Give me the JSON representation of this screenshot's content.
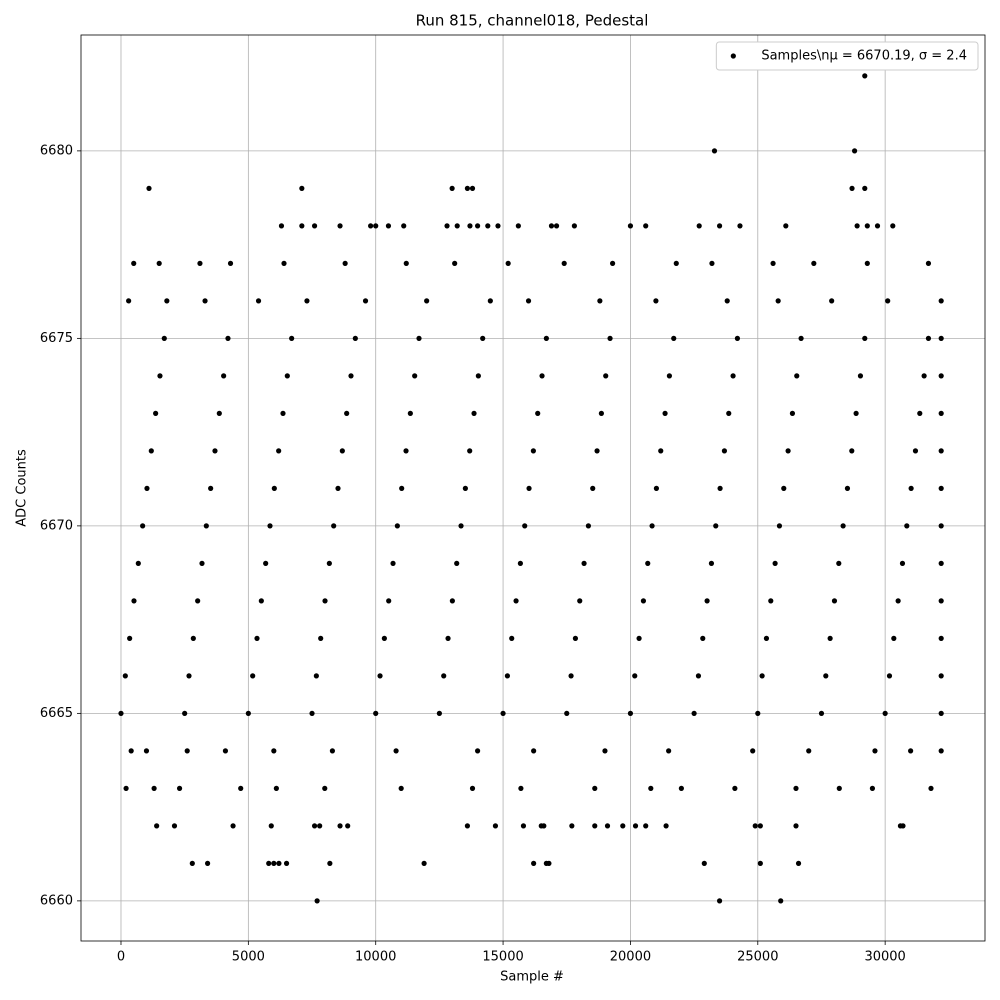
{
  "chart_data": {
    "type": "scatter",
    "title": "Run 815, channel018, Pedestal",
    "xlabel": "Sample #",
    "ylabel": "ADC Counts",
    "xlim": [
      -1570,
      33920
    ],
    "ylim": [
      6658.93,
      6683.09
    ],
    "xticks": [
      0,
      5000,
      10000,
      15000,
      20000,
      25000,
      30000
    ],
    "yticks": [
      6660,
      6665,
      6670,
      6675,
      6680
    ],
    "grid": true,
    "legend": "upper right",
    "x": [
      0,
      2500,
      5000,
      7500,
      10000,
      12500,
      15000,
      17500,
      20000,
      22500,
      25000,
      27500,
      30000,
      32200,
      170,
      2670,
      5170,
      7670,
      10170,
      12670,
      15170,
      17670,
      20170,
      22670,
      25170,
      27670,
      30170,
      32200,
      340,
      2840,
      5340,
      7840,
      10340,
      12840,
      15340,
      17840,
      20340,
      22840,
      25340,
      27840,
      30340,
      32200,
      510,
      3010,
      5510,
      8010,
      10510,
      13010,
      15510,
      18010,
      20510,
      23010,
      25510,
      28010,
      30510,
      32200,
      680,
      3180,
      5680,
      8180,
      10680,
      13180,
      15680,
      18180,
      20680,
      23180,
      25680,
      28180,
      30680,
      32200,
      850,
      3350,
      5850,
      8350,
      10850,
      13350,
      15850,
      18350,
      20850,
      23350,
      25850,
      28350,
      30850,
      32200,
      1020,
      3520,
      6020,
      8520,
      11020,
      13520,
      16020,
      18520,
      21020,
      23520,
      26020,
      28520,
      31020,
      32200,
      1190,
      3690,
      6190,
      8690,
      11190,
      13690,
      16190,
      18690,
      21190,
      23690,
      26190,
      28690,
      31190,
      32200,
      1360,
      3860,
      6360,
      8860,
      11360,
      13860,
      16360,
      18860,
      21360,
      23860,
      26360,
      28860,
      31360,
      32200,
      1530,
      4030,
      6530,
      9030,
      11530,
      14030,
      16530,
      19030,
      21530,
      24030,
      26530,
      29030,
      31530,
      32200,
      1700,
      4200,
      6700,
      9200,
      11700,
      14200,
      16700,
      19200,
      21700,
      24200,
      26700,
      29200,
      31700,
      32200,
      400,
      1000,
      2600,
      4100,
      6000,
      8300,
      10800,
      14000,
      16200,
      19000,
      21500,
      24800,
      27000,
      29600,
      31000,
      32200,
      200,
      1300,
      2300,
      4700,
      6100,
      8000,
      11000,
      13800,
      15700,
      18600,
      20800,
      22000,
      24100,
      26500,
      28200,
      29500,
      31800,
      300,
      1800,
      3300,
      5400,
      7300,
      9600,
      12000,
      14500,
      16000,
      18800,
      21000,
      23800,
      25800,
      27900,
      30100,
      32200,
      500,
      1500,
      3100,
      4300,
      6400,
      8800,
      11200,
      13100,
      15200,
      17400,
      19300,
      21800,
      23200,
      25600,
      27200,
      29300,
      31700,
      7700,
      23500,
      25900,
      2800,
      3400,
      5800,
      6000,
      6200,
      6500,
      8200,
      11900,
      16200,
      16700,
      16800,
      22900,
      25100,
      26600,
      1400,
      2100,
      4400,
      5900,
      7600,
      7800,
      8600,
      8900,
      13600,
      14700,
      15800,
      16500,
      16600,
      17700,
      18600,
      19100,
      19700,
      20200,
      20600,
      21400,
      24900,
      25100,
      26500,
      30600,
      30700,
      6300,
      7100,
      7600,
      8600,
      9800,
      10000,
      10500,
      11100,
      12800,
      13200,
      13700,
      14000,
      14400,
      14800,
      15600,
      16900,
      17100,
      17800,
      20000,
      20600,
      22700,
      23500,
      24300,
      26100,
      28900,
      29300,
      29700,
      30300,
      1100,
      7100,
      13000,
      13600,
      13800,
      28700,
      29200,
      23300,
      28800,
      29200
    ],
    "series": [
      {
        "name": "Samples\\nμ = 6670.19, σ = 2.4",
        "color": "#000000",
        "values": [
          6665,
          6665,
          6665,
          6665,
          6665,
          6665,
          6665,
          6665,
          6665,
          6665,
          6665,
          6665,
          6665,
          6665,
          6666,
          6666,
          6666,
          6666,
          6666,
          6666,
          6666,
          6666,
          6666,
          6666,
          6666,
          6666,
          6666,
          6666,
          6667,
          6667,
          6667,
          6667,
          6667,
          6667,
          6667,
          6667,
          6667,
          6667,
          6667,
          6667,
          6667,
          6667,
          6668,
          6668,
          6668,
          6668,
          6668,
          6668,
          6668,
          6668,
          6668,
          6668,
          6668,
          6668,
          6668,
          6668,
          6669,
          6669,
          6669,
          6669,
          6669,
          6669,
          6669,
          6669,
          6669,
          6669,
          6669,
          6669,
          6669,
          6669,
          6670,
          6670,
          6670,
          6670,
          6670,
          6670,
          6670,
          6670,
          6670,
          6670,
          6670,
          6670,
          6670,
          6670,
          6671,
          6671,
          6671,
          6671,
          6671,
          6671,
          6671,
          6671,
          6671,
          6671,
          6671,
          6671,
          6671,
          6671,
          6672,
          6672,
          6672,
          6672,
          6672,
          6672,
          6672,
          6672,
          6672,
          6672,
          6672,
          6672,
          6672,
          6672,
          6673,
          6673,
          6673,
          6673,
          6673,
          6673,
          6673,
          6673,
          6673,
          6673,
          6673,
          6673,
          6673,
          6673,
          6674,
          6674,
          6674,
          6674,
          6674,
          6674,
          6674,
          6674,
          6674,
          6674,
          6674,
          6674,
          6674,
          6674,
          6675,
          6675,
          6675,
          6675,
          6675,
          6675,
          6675,
          6675,
          6675,
          6675,
          6675,
          6675,
          6675,
          6675,
          6664,
          6664,
          6664,
          6664,
          6664,
          6664,
          6664,
          6664,
          6664,
          6664,
          6664,
          6664,
          6664,
          6664,
          6664,
          6664,
          6663,
          6663,
          6663,
          6663,
          6663,
          6663,
          6663,
          6663,
          6663,
          6663,
          6663,
          6663,
          6663,
          6663,
          6663,
          6663,
          6663,
          6676,
          6676,
          6676,
          6676,
          6676,
          6676,
          6676,
          6676,
          6676,
          6676,
          6676,
          6676,
          6676,
          6676,
          6676,
          6676,
          6677,
          6677,
          6677,
          6677,
          6677,
          6677,
          6677,
          6677,
          6677,
          6677,
          6677,
          6677,
          6677,
          6677,
          6677,
          6677,
          6677,
          6660,
          6660,
          6660,
          6661,
          6661,
          6661,
          6661,
          6661,
          6661,
          6661,
          6661,
          6661,
          6661,
          6661,
          6661,
          6661,
          6661,
          6662,
          6662,
          6662,
          6662,
          6662,
          6662,
          6662,
          6662,
          6662,
          6662,
          6662,
          6662,
          6662,
          6662,
          6662,
          6662,
          6662,
          6662,
          6662,
          6662,
          6662,
          6662,
          6662,
          6662,
          6662,
          6678,
          6678,
          6678,
          6678,
          6678,
          6678,
          6678,
          6678,
          6678,
          6678,
          6678,
          6678,
          6678,
          6678,
          6678,
          6678,
          6678,
          6678,
          6678,
          6678,
          6678,
          6678,
          6678,
          6678,
          6678,
          6678,
          6678,
          6678,
          6679,
          6679,
          6679,
          6679,
          6679,
          6679,
          6679,
          6680,
          6680,
          6682
        ]
      }
    ]
  }
}
